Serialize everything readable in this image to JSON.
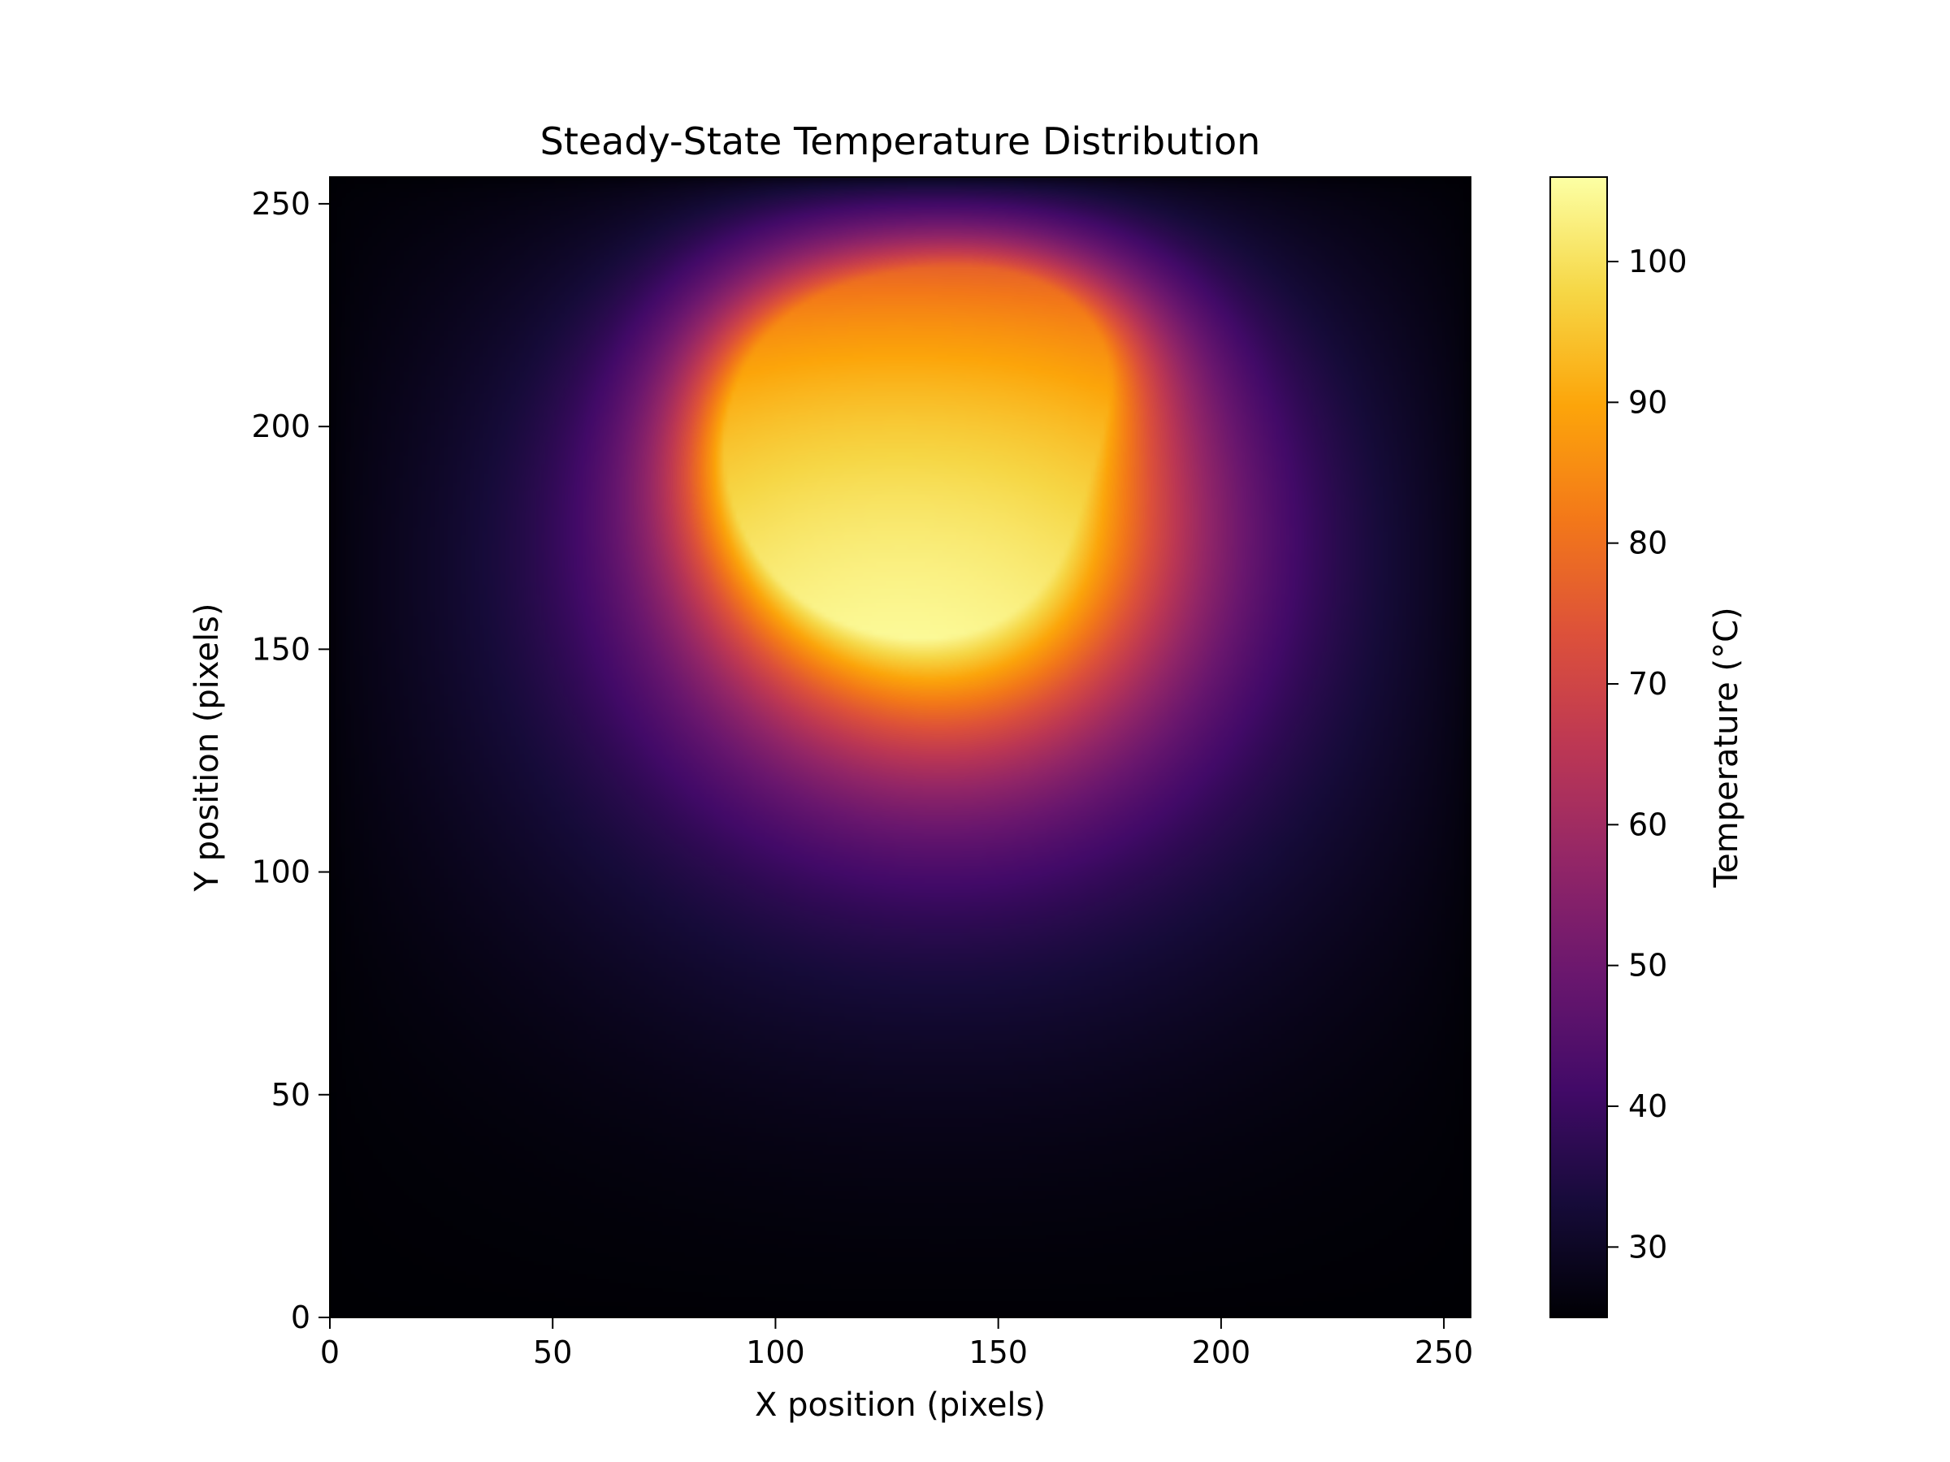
{
  "chart_data": {
    "type": "heatmap",
    "title": "Steady-State Temperature Distribution",
    "xlabel": "X position (pixels)",
    "ylabel": "Y position (pixels)",
    "xlim": [
      0,
      256
    ],
    "ylim": [
      0,
      256
    ],
    "x_ticks": [
      0,
      50,
      100,
      150,
      200,
      250
    ],
    "y_ticks": [
      0,
      50,
      100,
      150,
      200,
      250
    ],
    "grid": false,
    "colormap": "inferno",
    "colorbar": {
      "label": "Temperature (°C)",
      "range": [
        25,
        106
      ],
      "ticks": [
        30,
        40,
        50,
        60,
        70,
        80,
        90,
        100
      ]
    },
    "field": {
      "boundary_temperature": 25,
      "hotspots": [
        {
          "x": 138,
          "y": 183,
          "peak_temperature": 106
        },
        {
          "x": 148,
          "y": 218,
          "peak_temperature": 90
        },
        {
          "x": 110,
          "y": 200,
          "peak_temperature": 85
        }
      ]
    }
  }
}
